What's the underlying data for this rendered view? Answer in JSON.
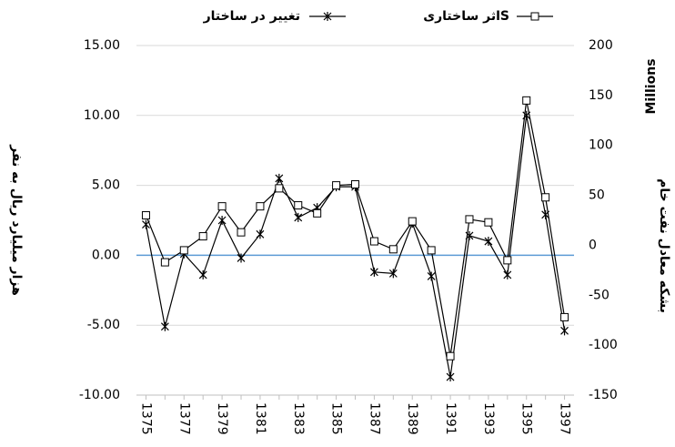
{
  "chart_data": {
    "type": "line",
    "y_label": "هزار میلیارد ریال به نفر",
    "y2_label": "بشکه معادل نفت خام",
    "y2_unit": "Millions",
    "categories": [
      "1375",
      null,
      "1377",
      null,
      "1379",
      null,
      "1381",
      null,
      "1383",
      null,
      "1385",
      null,
      "1387",
      null,
      "1389",
      null,
      "1391",
      null,
      "1393",
      null,
      "1395",
      null,
      "1397"
    ],
    "series": [
      {
        "name": "تغییر در ساختار",
        "color": "#000000",
        "marker": "star",
        "values": [
          2.2,
          -5.1,
          0.1,
          -1.4,
          2.5,
          -0.2,
          1.5,
          5.5,
          2.7,
          3.4,
          4.9,
          4.9,
          -1.2,
          -1.3,
          2.3,
          -1.5,
          -8.7,
          1.4,
          1.0,
          -1.4,
          10.0,
          2.9,
          -5.4
        ]
      },
      {
        "name": "اثر ساختاریS",
        "color": "#000000",
        "marker": "square",
        "axis": "y2",
        "values": [
          30,
          -17,
          -5,
          9,
          39,
          13,
          39,
          57,
          40,
          32,
          60,
          61,
          4,
          -4,
          24,
          -5,
          -111,
          26,
          23,
          -15,
          145,
          48,
          -72
        ]
      }
    ],
    "ylim": [
      -10,
      15
    ],
    "yticks": [
      {
        "value": -10,
        "label": "-10.00"
      },
      {
        "value": -5,
        "label": "-5.00"
      },
      {
        "value": 0,
        "label": "0.00"
      },
      {
        "value": 5,
        "label": "5.00"
      },
      {
        "value": 10,
        "label": "10.00"
      },
      {
        "value": 15,
        "label": "15.00"
      }
    ],
    "y2lim": [
      -150,
      200
    ],
    "y2ticks": [
      -150,
      -100,
      -50,
      0,
      50,
      100,
      150,
      200
    ],
    "grid": true,
    "grid_color": "#d9d9d9",
    "zero_line_color": "#5b9bd5"
  }
}
